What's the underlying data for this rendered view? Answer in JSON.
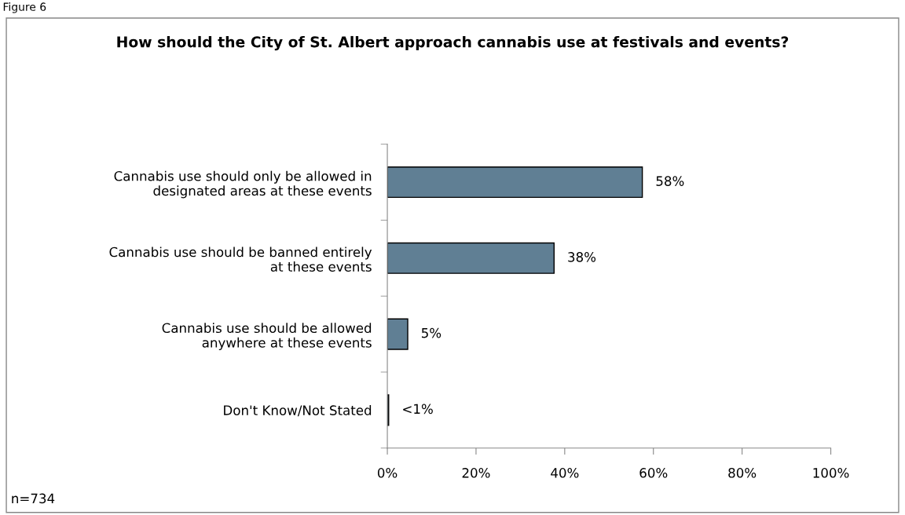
{
  "chart_data": {
    "type": "bar",
    "orientation": "horizontal",
    "title": "How should the City of St. Albert approach cannabis use at festivals and events?",
    "categories": [
      "Cannabis use should only be allowed in\ndesignated areas at these events",
      "Cannabis use should be banned entirely\nat these events",
      "Cannabis use should be allowed\nanywhere at these events",
      "Don't Know/Not Stated"
    ],
    "values": [
      57.5,
      37.6,
      4.6,
      0.3
    ],
    "value_labels": [
      "58%",
      "38%",
      "5%",
      "<1%"
    ],
    "color": "#607f94",
    "xlim": [
      0,
      100
    ],
    "xticks": [
      {
        "value": 0,
        "label": "0%"
      },
      {
        "value": 20,
        "label": "20%"
      },
      {
        "value": 40,
        "label": "40%"
      },
      {
        "value": 60,
        "label": "60%"
      },
      {
        "value": 80,
        "label": "80%"
      },
      {
        "value": 100,
        "label": "100%"
      }
    ],
    "grid": false,
    "legend": false,
    "annotations": [
      "Figure 6",
      "n=734"
    ]
  }
}
